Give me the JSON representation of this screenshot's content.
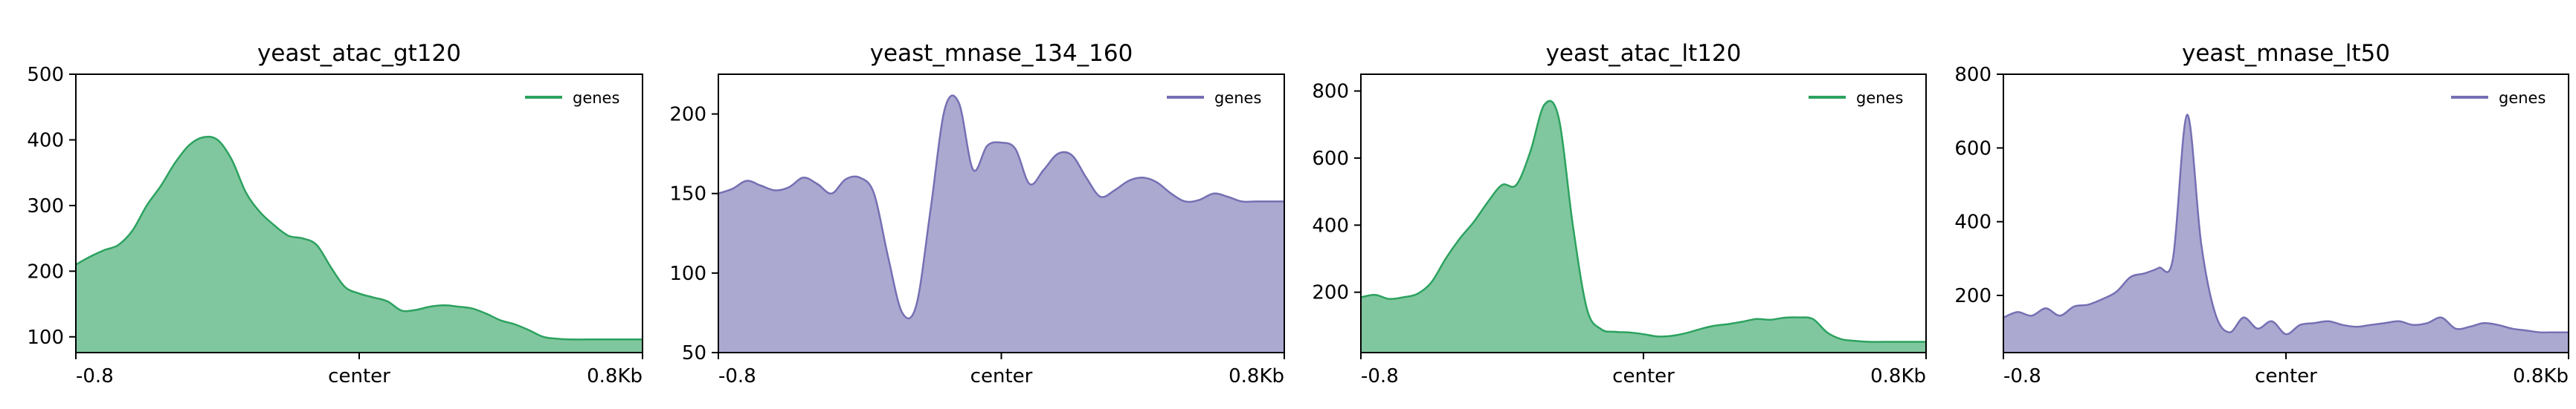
{
  "chart_data": [
    {
      "type": "area",
      "title": "yeast_atac_gt120",
      "xlabel": "",
      "ylabel": "",
      "x_ticks": [
        "-0.8",
        "center",
        "0.8Kb"
      ],
      "xlim": [
        -800,
        800
      ],
      "ylim": [
        76,
        500
      ],
      "yticks": [
        100,
        200,
        300,
        400,
        500
      ],
      "color": "#2ca25f",
      "legend": {
        "labels": [
          "genes"
        ],
        "placement": "top-right"
      },
      "grid": false,
      "series": [
        {
          "name": "genes",
          "x": [
            -800,
            -760,
            -720,
            -680,
            -640,
            -600,
            -560,
            -520,
            -480,
            -440,
            -400,
            -360,
            -320,
            -280,
            -240,
            -200,
            -160,
            -120,
            -80,
            -40,
            0,
            40,
            80,
            120,
            160,
            200,
            240,
            280,
            320,
            360,
            400,
            440,
            480,
            520,
            560,
            600,
            640,
            680,
            720,
            760,
            800
          ],
          "y": [
            210,
            222,
            232,
            240,
            262,
            300,
            330,
            365,
            392,
            404,
            400,
            370,
            320,
            290,
            270,
            254,
            250,
            240,
            206,
            176,
            166,
            160,
            154,
            140,
            141,
            146,
            148,
            146,
            143,
            135,
            125,
            119,
            110,
            100,
            97,
            96,
            96,
            96,
            96,
            96,
            96
          ]
        }
      ]
    },
    {
      "type": "area",
      "title": "yeast_mnase_134_160",
      "xlabel": "",
      "ylabel": "",
      "x_ticks": [
        "-0.8",
        "center",
        "0.8Kb"
      ],
      "xlim": [
        -800,
        800
      ],
      "ylim": [
        50,
        225
      ],
      "yticks": [
        50,
        100,
        150,
        200
      ],
      "color": "#7570b3",
      "legend": {
        "labels": [
          "genes"
        ],
        "placement": "top-right"
      },
      "grid": false,
      "series": [
        {
          "name": "genes",
          "x": [
            -800,
            -760,
            -720,
            -680,
            -640,
            -600,
            -560,
            -520,
            -480,
            -440,
            -400,
            -360,
            -320,
            -280,
            -240,
            -200,
            -160,
            -120,
            -80,
            -40,
            0,
            40,
            80,
            120,
            160,
            200,
            240,
            280,
            320,
            360,
            400,
            440,
            480,
            520,
            560,
            600,
            640,
            680,
            720,
            760,
            800
          ],
          "y": [
            150,
            153,
            158,
            155,
            152,
            154,
            160,
            156,
            150,
            159,
            160,
            150,
            110,
            75,
            80,
            140,
            203,
            207,
            165,
            180,
            182,
            178,
            156,
            165,
            175,
            174,
            160,
            148,
            152,
            158,
            160,
            157,
            150,
            145,
            146,
            150,
            148,
            145,
            145,
            145,
            145
          ]
        }
      ]
    },
    {
      "type": "area",
      "title": "yeast_atac_lt120",
      "xlabel": "",
      "ylabel": "",
      "x_ticks": [
        "-0.8",
        "center",
        "0.8Kb"
      ],
      "xlim": [
        -800,
        800
      ],
      "ylim": [
        20,
        850
      ],
      "yticks": [
        200,
        400,
        600,
        800
      ],
      "color": "#2ca25f",
      "legend": {
        "labels": [
          "genes"
        ],
        "placement": "top-right"
      },
      "grid": false,
      "series": [
        {
          "name": "genes",
          "x": [
            -800,
            -760,
            -720,
            -680,
            -640,
            -600,
            -560,
            -520,
            -480,
            -440,
            -400,
            -360,
            -320,
            -280,
            -240,
            -200,
            -160,
            -120,
            -80,
            -40,
            0,
            40,
            80,
            120,
            160,
            200,
            240,
            280,
            320,
            360,
            400,
            440,
            480,
            520,
            560,
            600,
            640,
            680,
            720,
            760,
            800
          ],
          "y": [
            185,
            192,
            180,
            185,
            195,
            230,
            300,
            360,
            410,
            470,
            520,
            520,
            620,
            760,
            720,
            400,
            150,
            90,
            82,
            80,
            75,
            68,
            70,
            78,
            90,
            100,
            105,
            112,
            120,
            118,
            124,
            125,
            120,
            80,
            60,
            55,
            52,
            52,
            52,
            52,
            52
          ]
        }
      ]
    },
    {
      "type": "area",
      "title": "yeast_mnase_lt50",
      "xlabel": "",
      "ylabel": "",
      "x_ticks": [
        "-0.8",
        "center",
        "0.8Kb"
      ],
      "xlim": [
        -800,
        800
      ],
      "ylim": [
        45,
        800
      ],
      "yticks": [
        200,
        400,
        600,
        800
      ],
      "color": "#7570b3",
      "legend": {
        "labels": [
          "genes"
        ],
        "placement": "top-right"
      },
      "grid": false,
      "series": [
        {
          "name": "genes",
          "x": [
            -800,
            -760,
            -720,
            -680,
            -640,
            -600,
            -560,
            -520,
            -480,
            -440,
            -400,
            -360,
            -320,
            -280,
            -240,
            -200,
            -160,
            -120,
            -80,
            -40,
            0,
            40,
            80,
            120,
            160,
            200,
            240,
            280,
            320,
            360,
            400,
            440,
            480,
            520,
            560,
            600,
            640,
            680,
            720,
            760,
            800
          ],
          "y": [
            140,
            155,
            145,
            165,
            145,
            170,
            175,
            190,
            210,
            250,
            260,
            275,
            300,
            690,
            340,
            150,
            100,
            140,
            110,
            130,
            95,
            120,
            125,
            130,
            120,
            115,
            120,
            125,
            130,
            120,
            125,
            140,
            110,
            115,
            125,
            120,
            110,
            105,
            100,
            100,
            100
          ]
        }
      ]
    }
  ]
}
